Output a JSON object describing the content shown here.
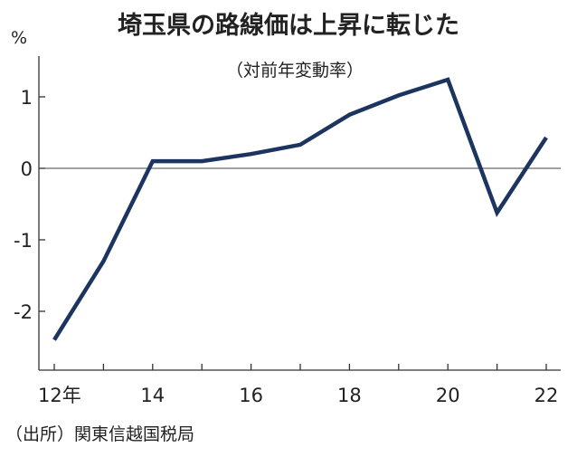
{
  "chart_data": {
    "type": "line",
    "title": "埼玉県の路線価は上昇に転じた",
    "subtitle": "（対前年変動率）",
    "unit": "%",
    "x": [
      12,
      13,
      14,
      15,
      16,
      17,
      18,
      19,
      20,
      21,
      22
    ],
    "series": [
      {
        "values": [
          -2.4,
          -1.3,
          0.1,
          0.1,
          0.2,
          0.33,
          0.75,
          1.02,
          1.24,
          -0.62,
          0.43
        ],
        "color": "#1b3460"
      }
    ],
    "xlim": [
      12,
      22
    ],
    "ylim": [
      -2.8,
      1.6
    ],
    "x_tick_labels": [
      {
        "value": 12,
        "label": "12年"
      },
      {
        "value": 14,
        "label": "14"
      },
      {
        "value": 16,
        "label": "16"
      },
      {
        "value": 18,
        "label": "18"
      },
      {
        "value": 20,
        "label": "20"
      },
      {
        "value": 22,
        "label": "22"
      }
    ],
    "y_ticks": [
      {
        "value": 1,
        "label": "1"
      },
      {
        "value": 0,
        "label": "0"
      },
      {
        "value": -1,
        "label": "-1"
      },
      {
        "value": -2,
        "label": "-2"
      }
    ],
    "zero_line": true,
    "grid": false,
    "source": "（出所）関東信越国税局"
  }
}
